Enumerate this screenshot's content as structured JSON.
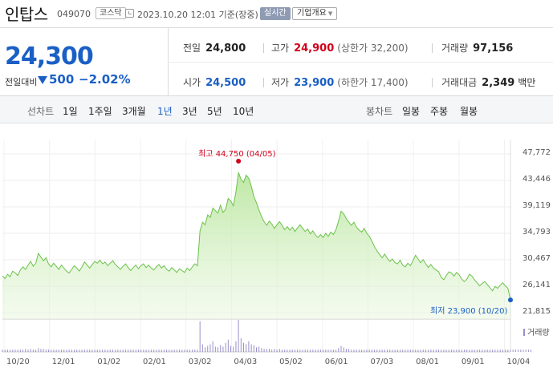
{
  "header": {
    "name": "인탑스",
    "code": "049070",
    "market": "코스닥",
    "timestamp": "2023.10.20 12:01 기준(장중)",
    "realtime_label": "실시간",
    "company_info_label": "기업개요"
  },
  "price": {
    "current": "24,300",
    "change_label": "전일대비",
    "change_abs": "500",
    "change_pct": "−2.02%",
    "direction": "down"
  },
  "quote": {
    "prev_label": "전일",
    "prev_value": "24,800",
    "high_label": "고가",
    "high_value": "24,900",
    "upper_limit": "(상한가 32,200)",
    "volume_label": "거래량",
    "volume_value": "97,156",
    "open_label": "시가",
    "open_value": "24,500",
    "low_label": "저가",
    "low_value": "23,900",
    "lower_limit": "(하한가 17,400)",
    "amount_label": "거래대금",
    "amount_value": "2,349",
    "amount_unit": "백만"
  },
  "toolbar": {
    "line_label": "선차트",
    "periods": [
      "1일",
      "1주일",
      "3개월",
      "1년",
      "3년",
      "5년",
      "10년"
    ],
    "active_period": "1년",
    "candle_label": "봉차트",
    "candle_periods": [
      "일봉",
      "주봉",
      "월봉"
    ]
  },
  "colors": {
    "accent_blue": "#1a5fc5",
    "up_red": "#d0021b",
    "line_green": "#6cc24a",
    "volume_purple": "#9b8fc9"
  },
  "chart_data": {
    "type": "area",
    "y_ticks": [
      "47,772",
      "43,446",
      "39,119",
      "34,793",
      "30,467",
      "26,141",
      "21,815"
    ],
    "ylim": [
      21815,
      47772
    ],
    "x_ticks": [
      "10/20",
      "12/01",
      "01/02",
      "02/01",
      "03/02",
      "04/03",
      "05/02",
      "06/01",
      "07/03",
      "08/01",
      "09/01",
      "10/04"
    ],
    "max_annotation": "최고  44,750 (04/05)",
    "min_annotation": "최저  23,900 (10/20)",
    "volume_legend": "거래량",
    "grid": true,
    "series": [
      {
        "values": [
          27800,
          27400,
          28100,
          27700,
          28600,
          28300,
          27900,
          28800,
          29300,
          28900,
          29600,
          30200,
          29400,
          29900,
          31500,
          30900,
          30300,
          30800,
          29800,
          29300,
          29900,
          29400,
          28900,
          29600,
          29100,
          28600,
          28300,
          28900,
          29500,
          29100,
          28600,
          29300,
          30100,
          29600,
          29100,
          29700,
          30200,
          29900,
          30400,
          29800,
          30100,
          29500,
          29900,
          30300,
          29700,
          29300,
          28900,
          29400,
          29800,
          29200,
          28700,
          29200,
          29600,
          29000,
          29500,
          29800,
          29200,
          29600,
          29100,
          28800,
          29300,
          29700,
          29100,
          29500,
          28900,
          28600,
          29200,
          28800,
          28400,
          29000,
          28700,
          28400,
          29100,
          28700,
          29300,
          29800,
          29500,
          35200,
          36600,
          36200,
          37800,
          37400,
          38900,
          38500,
          38100,
          39400,
          38200,
          38700,
          40500,
          40100,
          39300,
          41500,
          44750,
          43600,
          43100,
          44300,
          43800,
          42500,
          40800,
          39800,
          38600,
          37500,
          36700,
          36100,
          36800,
          36300,
          35600,
          36200,
          36700,
          36100,
          35400,
          35900,
          35300,
          35800,
          35100,
          35700,
          36200,
          35600,
          35100,
          35500,
          34700,
          35200,
          34500,
          34100,
          34600,
          34100,
          34800,
          34300,
          35000,
          34600,
          35400,
          36800,
          38400,
          38000,
          37200,
          36600,
          36100,
          36600,
          35800,
          35300,
          35000,
          35600,
          34800,
          34300,
          33500,
          32600,
          31900,
          31300,
          30800,
          31400,
          30700,
          30200,
          30600,
          30000,
          29800,
          30400,
          29600,
          29300,
          29900,
          29500,
          30300,
          31200,
          30600,
          30000,
          30500,
          29800,
          29200,
          29700,
          29100,
          28800,
          28500,
          27600,
          27200,
          27900,
          28500,
          28300,
          27800,
          28400,
          28000,
          27300,
          26900,
          27300,
          28100,
          27800,
          27200,
          26700,
          26200,
          26600,
          26900,
          26400,
          25900,
          25400,
          26100,
          25800,
          26300,
          26700,
          26200,
          25800,
          23900
        ]
      }
    ],
    "volume": [
      3,
      3,
      3,
      3,
      3,
      3,
      3,
      3,
      3,
      4,
      3,
      4,
      3,
      3,
      5,
      4,
      4,
      3,
      3,
      3,
      3,
      3,
      3,
      3,
      3,
      3,
      3,
      3,
      3,
      3,
      3,
      3,
      3,
      3,
      3,
      3,
      3,
      3,
      3,
      3,
      3,
      3,
      3,
      3,
      3,
      3,
      3,
      3,
      3,
      3,
      3,
      3,
      3,
      3,
      3,
      3,
      3,
      3,
      3,
      3,
      3,
      3,
      3,
      3,
      3,
      3,
      3,
      3,
      3,
      3,
      3,
      3,
      3,
      3,
      3,
      3,
      3,
      40,
      10,
      6,
      8,
      10,
      14,
      7,
      6,
      9,
      7,
      12,
      16,
      8,
      7,
      14,
      42,
      18,
      12,
      10,
      14,
      10,
      9,
      6,
      7,
      5,
      4,
      4,
      4,
      3,
      4,
      3,
      4,
      3,
      3,
      3,
      3,
      3,
      3,
      3,
      3,
      3,
      3,
      3,
      3,
      3,
      3,
      3,
      3,
      3,
      3,
      3,
      3,
      3,
      3,
      5,
      8,
      6,
      4,
      4,
      3,
      3,
      3,
      3,
      3,
      3,
      3,
      3,
      3,
      3,
      3,
      3,
      3,
      3,
      3,
      3,
      3,
      3,
      3,
      3,
      3,
      3,
      3,
      3,
      3,
      3,
      3,
      3,
      3,
      3,
      3,
      3,
      3,
      3,
      3,
      3,
      3,
      3,
      3,
      3,
      3,
      3,
      3,
      3,
      3,
      3,
      3,
      3,
      3,
      3,
      3,
      3,
      3,
      3,
      3,
      3,
      3,
      3,
      3,
      3,
      3,
      3,
      3,
      3,
      3,
      3,
      3,
      3,
      3,
      3,
      3
    ]
  }
}
